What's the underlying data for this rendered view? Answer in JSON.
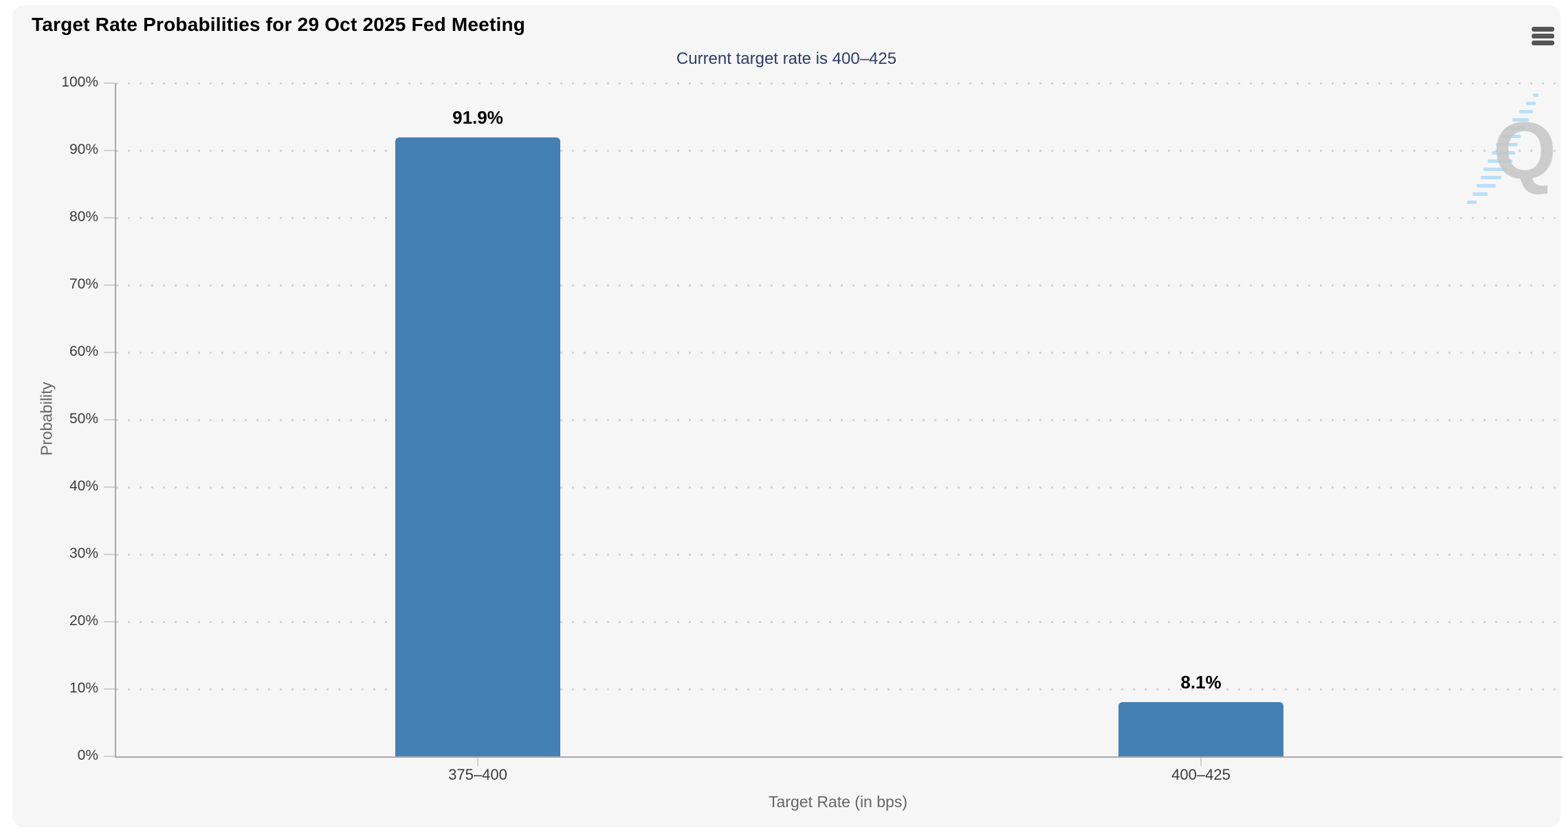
{
  "header": {
    "menu_icon": "hamburger-menu-icon"
  },
  "watermark": {
    "letter": "Q"
  },
  "chart_data": {
    "type": "bar",
    "title": "Target Rate Probabilities for 29 Oct 2025 Fed Meeting",
    "subtitle": "Current target rate is 400–425",
    "categories": [
      "375–400",
      "400–425"
    ],
    "values": [
      91.9,
      8.1
    ],
    "data_labels": [
      "91.9%",
      "8.1%"
    ],
    "xlabel": "Target Rate (in bps)",
    "ylabel": "Probability",
    "ylim": [
      0,
      100
    ],
    "yticks": [
      0,
      10,
      20,
      30,
      40,
      50,
      60,
      70,
      80,
      90,
      100
    ],
    "ytick_labels": [
      "0%",
      "10%",
      "20%",
      "30%",
      "40%",
      "50%",
      "60%",
      "70%",
      "80%",
      "90%",
      "100%"
    ],
    "grid": "dotted-horizontal",
    "legend": "none",
    "colors": {
      "bar": "#4580b4",
      "subtitle_text": "#2e3d63",
      "title_text": "#000000",
      "axis_line": "#a8a8a8",
      "grid_dot": "#d3d3d3",
      "tick_label": "#3b3b3b",
      "axis_title": "#666666",
      "card_background": "#f6f6f7",
      "menu_icon": "#555555",
      "watermark_gray": "#c5c5c5",
      "watermark_blue": "#a5d8f3"
    }
  }
}
